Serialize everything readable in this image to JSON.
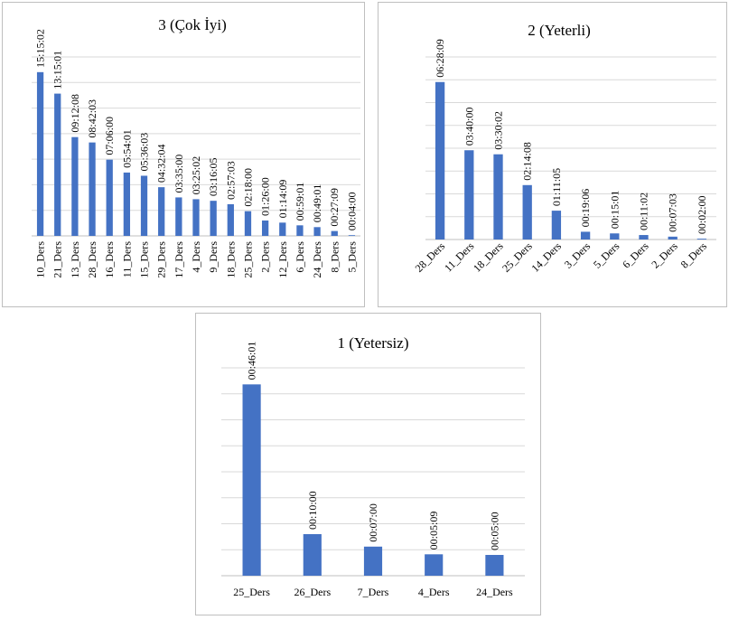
{
  "colors": {
    "bar": "#4472c4",
    "grid": "#d9d9d9",
    "border": "#bfbfbf"
  },
  "chart_data": [
    {
      "type": "bar",
      "title": "3 (Çok İyi)",
      "categories": [
        "10_Ders",
        "21_Ders",
        "13_Ders",
        "28_Ders",
        "16_Ders",
        "11_Ders",
        "15_Ders",
        "29_Ders",
        "17_Ders",
        "4_Ders",
        "9_Ders",
        "18_Ders",
        "25_Ders",
        "2_Ders",
        "12_Ders",
        "6_Ders",
        "24_Ders",
        "8_Ders",
        "5_Ders"
      ],
      "labels": [
        "15:15:02",
        "13:15:01",
        "09:12:08",
        "08:42:03",
        "07:06:00",
        "05:54:01",
        "05:36:03",
        "04:32:04",
        "03:35:00",
        "03:25:02",
        "03:16:05",
        "02:57:03",
        "02:18:00",
        "01:26:00",
        "01:14:09",
        "00:59:01",
        "00:49:01",
        "00:27:09",
        "00:04:00"
      ],
      "values": [
        915.03,
        795.02,
        552.13,
        522.05,
        426.0,
        354.02,
        336.05,
        272.07,
        215.0,
        205.03,
        196.08,
        177.05,
        138.0,
        86.0,
        74.15,
        59.02,
        49.02,
        27.15,
        4.0
      ],
      "ylim": [
        0,
        1000
      ]
    },
    {
      "type": "bar",
      "title": "2  (Yeterli)",
      "categories": [
        "28_Ders",
        "11_Ders",
        "18_Ders",
        "25_Ders",
        "14_Ders",
        "3_Ders",
        "5_Ders",
        "6_Ders",
        "2_Ders",
        "8_Ders"
      ],
      "labels": [
        "06:28:09",
        "03:40:00",
        "03:30:02",
        "02:14:08",
        "01:11:05",
        "00:19:06",
        "00:15:01",
        "00:11:02",
        "00:07:03",
        "00:02:00"
      ],
      "values": [
        388.15,
        220.0,
        210.03,
        134.13,
        71.08,
        19.1,
        15.02,
        11.03,
        7.05,
        2.0
      ],
      "ylim": [
        0,
        450
      ]
    },
    {
      "type": "bar",
      "title": "1 (Yetersiz)",
      "categories": [
        "25_Ders",
        "26_Ders",
        "7_Ders",
        "4_Ders",
        "24_Ders"
      ],
      "labels": [
        "00:46:01",
        "00:10:00",
        "00:07:00",
        "00:05:09",
        "00:05:00"
      ],
      "values": [
        46.02,
        10.0,
        7.0,
        5.15,
        5.0
      ],
      "ylim": [
        0,
        50
      ]
    }
  ]
}
